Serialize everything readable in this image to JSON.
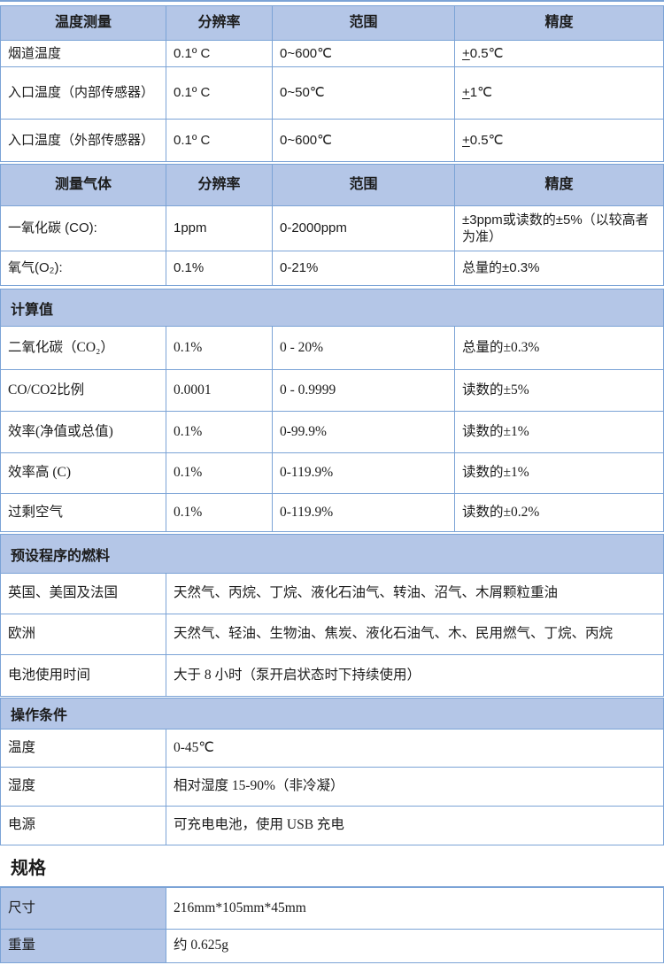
{
  "colors": {
    "page_bg": "#ffffff",
    "header_bg": "#b4c6e7",
    "border": "#7ba3d6",
    "text": "#1c1c1c"
  },
  "sections": [
    {
      "id": "temperature",
      "kind": "grid4",
      "header": [
        "温度测量",
        "分辨率",
        "范围",
        "精度"
      ],
      "rows": [
        {
          "cells": [
            "烟道温度",
            "0.1º C",
            "0~600℃",
            {
              "pm": "+",
              "t": "0.5℃"
            }
          ]
        },
        {
          "cells": [
            "入口温度（内部传感器）",
            "0.1º C",
            "0~50℃",
            {
              "pm": "+",
              "t": "1℃"
            }
          ]
        },
        {
          "cells": [
            "入口温度（外部传感器）",
            "0.1º C",
            "0~600℃",
            {
              "pm": "+",
              "t": "0.5℃"
            }
          ]
        }
      ]
    },
    {
      "id": "gases",
      "kind": "grid4",
      "header": [
        "测量气体",
        "分辨率",
        "范围",
        "精度"
      ],
      "rows": [
        {
          "cells": [
            "一氧化碳 (CO):",
            "1ppm",
            "0-2000ppm",
            "±3ppm或读数的±5%（以较高者为准）"
          ]
        },
        {
          "cells": [
            "氧气(O₂):",
            "0.1%",
            "0-21%",
            "总量的±0.3%"
          ]
        }
      ]
    },
    {
      "id": "calculated",
      "kind": "grid4",
      "band": "计算值",
      "rows": [
        {
          "cells": [
            "二氧化碳（CO₂）",
            "0.1%",
            "0 - 20%",
            "总量的±0.3%"
          ]
        },
        {
          "cells": [
            "CO/CO2比例",
            "0.0001",
            "0 - 0.9999",
            "读数的±5%"
          ]
        },
        {
          "cells": [
            "效率(净值或总值)",
            "0.1%",
            "0-99.9%",
            "读数的±1%"
          ]
        },
        {
          "cells": [
            "效率高 (C)",
            "0.1%",
            "0-119.9%",
            "读数的±1%"
          ]
        },
        {
          "cells": [
            "过剩空气",
            "0.1%",
            "0-119.9%",
            "读数的±0.2%"
          ]
        }
      ]
    },
    {
      "id": "fuels",
      "kind": "grid2",
      "band": "预设程序的燃料",
      "rows": [
        {
          "cells": [
            "英国、美国及法国",
            "天然气、丙烷、丁烷、液化石油气、转油、沼气、木屑颗粒重油"
          ]
        },
        {
          "cells": [
            "欧洲",
            "天然气、轻油、生物油、焦炭、液化石油气、木、民用燃气、丁烷、丙烷"
          ]
        },
        {
          "cells": [
            "电池使用时间",
            "大于 8 小时（泵开启状态时下持续使用）"
          ]
        }
      ]
    },
    {
      "id": "conditions",
      "kind": "grid2",
      "band": "操作条件",
      "rows": [
        {
          "cells": [
            "温度",
            "0-45℃"
          ]
        },
        {
          "cells": [
            "湿度",
            "相对湿度 15-90%（非冷凝）"
          ]
        },
        {
          "cells": [
            "电源",
            "可充电电池，使用 USB 充电"
          ]
        }
      ]
    },
    {
      "id": "spec-heading",
      "kind": "heading",
      "text": "规格"
    },
    {
      "id": "dimensions",
      "kind": "grid2",
      "shaded_labels": true,
      "rows": [
        {
          "cells": [
            "尺寸",
            "216mm*105mm*45mm"
          ]
        },
        {
          "cells": [
            "重量",
            "约  0.625g"
          ]
        }
      ]
    }
  ]
}
